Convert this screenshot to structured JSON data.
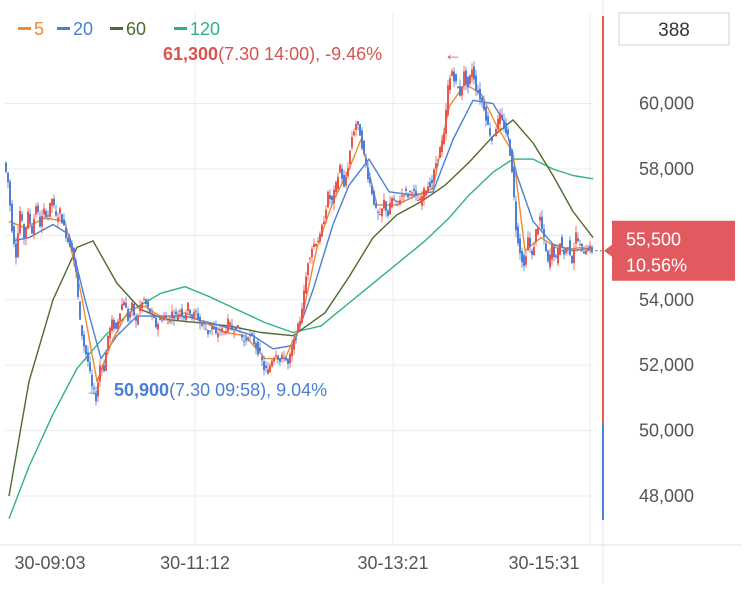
{
  "chart_data": {
    "type": "candlestick",
    "legend": [
      {
        "label": "5",
        "color": "#f08a2c"
      },
      {
        "label": "20",
        "color": "#4a7fd6"
      },
      {
        "label": "60",
        "color": "#4d6b2e"
      },
      {
        "label": "120",
        "color": "#2fb37a"
      }
    ],
    "volume_box": "388",
    "y_ticks": [
      {
        "value": 60000,
        "label": "60,000"
      },
      {
        "value": 58000,
        "label": "58,000"
      },
      {
        "value": 54000,
        "label": "54,000"
      },
      {
        "value": 52000,
        "label": "52,000"
      },
      {
        "value": 50000,
        "label": "50,000"
      },
      {
        "value": 48000,
        "label": "48,000"
      }
    ],
    "ylim": [
      46500,
      62800
    ],
    "x_ticks": [
      "30-09:03",
      "30-11:12",
      "30-13:21",
      "30-15:31"
    ],
    "current_price": {
      "value": 55500,
      "label": "55,500",
      "change": "10.56%",
      "color": "#e05a5f"
    },
    "high_annotation": {
      "value": 61300,
      "price": "61,300",
      "detail": "(7.30 14:00), -9.46%",
      "arrow": "←",
      "color": "#d9534f"
    },
    "low_annotation": {
      "value": 50900,
      "price": "50,900",
      "detail": "(7.30 09:58), 9.04%",
      "arrow": "→",
      "color": "#4a7fd6"
    },
    "up_color": "#e8574f",
    "down_color": "#4f7fd9",
    "price_path": [
      [
        0,
        58200
      ],
      [
        4,
        57600
      ],
      [
        8,
        56200
      ],
      [
        12,
        55400
      ],
      [
        16,
        56700
      ],
      [
        20,
        55900
      ],
      [
        24,
        56600
      ],
      [
        28,
        56100
      ],
      [
        32,
        56900
      ],
      [
        36,
        56300
      ],
      [
        40,
        56700
      ],
      [
        44,
        56600
      ],
      [
        48,
        57100
      ],
      [
        52,
        56500
      ],
      [
        56,
        56700
      ],
      [
        60,
        56200
      ],
      [
        64,
        55800
      ],
      [
        68,
        55600
      ],
      [
        72,
        54800
      ],
      [
        76,
        53300
      ],
      [
        80,
        52600
      ],
      [
        84,
        52100
      ],
      [
        88,
        51300
      ],
      [
        92,
        51000
      ],
      [
        96,
        52000
      ],
      [
        100,
        51900
      ],
      [
        104,
        52900
      ],
      [
        108,
        53300
      ],
      [
        112,
        53100
      ],
      [
        116,
        53700
      ],
      [
        120,
        54000
      ],
      [
        124,
        53400
      ],
      [
        128,
        53800
      ],
      [
        132,
        53300
      ],
      [
        136,
        53800
      ],
      [
        140,
        54000
      ],
      [
        144,
        53700
      ],
      [
        148,
        53500
      ],
      [
        152,
        53200
      ],
      [
        156,
        53400
      ],
      [
        160,
        53500
      ],
      [
        164,
        53300
      ],
      [
        168,
        53600
      ],
      [
        172,
        53500
      ],
      [
        176,
        53700
      ],
      [
        180,
        53500
      ],
      [
        184,
        53800
      ],
      [
        188,
        53500
      ],
      [
        192,
        53600
      ],
      [
        196,
        53300
      ],
      [
        200,
        53200
      ],
      [
        204,
        53000
      ],
      [
        208,
        53200
      ],
      [
        212,
        52900
      ],
      [
        216,
        53100
      ],
      [
        220,
        53000
      ],
      [
        224,
        53300
      ],
      [
        228,
        53100
      ],
      [
        232,
        53200
      ],
      [
        236,
        53000
      ],
      [
        240,
        52700
      ],
      [
        244,
        52900
      ],
      [
        248,
        52800
      ],
      [
        252,
        52600
      ],
      [
        256,
        52300
      ],
      [
        260,
        51900
      ],
      [
        264,
        51800
      ],
      [
        268,
        52200
      ],
      [
        272,
        52400
      ],
      [
        276,
        52100
      ],
      [
        280,
        52300
      ],
      [
        284,
        52000
      ],
      [
        288,
        52500
      ],
      [
        292,
        52900
      ],
      [
        296,
        53400
      ],
      [
        300,
        54200
      ],
      [
        304,
        55200
      ],
      [
        308,
        55600
      ],
      [
        312,
        55800
      ],
      [
        316,
        55900
      ],
      [
        320,
        56500
      ],
      [
        324,
        57200
      ],
      [
        328,
        57000
      ],
      [
        332,
        57500
      ],
      [
        336,
        58100
      ],
      [
        340,
        57400
      ],
      [
        344,
        58100
      ],
      [
        348,
        59000
      ],
      [
        352,
        59400
      ],
      [
        356,
        59100
      ],
      [
        360,
        58400
      ],
      [
        364,
        57800
      ],
      [
        368,
        57300
      ],
      [
        372,
        56700
      ],
      [
        376,
        56500
      ],
      [
        380,
        57000
      ],
      [
        384,
        56600
      ],
      [
        388,
        57100
      ],
      [
        392,
        56900
      ],
      [
        396,
        57100
      ],
      [
        400,
        57300
      ],
      [
        404,
        57200
      ],
      [
        408,
        57400
      ],
      [
        412,
        57100
      ],
      [
        416,
        57000
      ],
      [
        420,
        57300
      ],
      [
        424,
        57500
      ],
      [
        428,
        57600
      ],
      [
        432,
        58200
      ],
      [
        436,
        58600
      ],
      [
        440,
        59000
      ],
      [
        444,
        60500
      ],
      [
        448,
        61000
      ],
      [
        452,
        60600
      ],
      [
        456,
        60300
      ],
      [
        460,
        60900
      ],
      [
        464,
        60500
      ],
      [
        468,
        61100
      ],
      [
        472,
        60500
      ],
      [
        476,
        60200
      ],
      [
        480,
        59900
      ],
      [
        484,
        59300
      ],
      [
        488,
        58900
      ],
      [
        492,
        59300
      ],
      [
        496,
        59600
      ],
      [
        500,
        59300
      ],
      [
        504,
        59000
      ],
      [
        508,
        58000
      ],
      [
        512,
        56200
      ],
      [
        516,
        55500
      ],
      [
        520,
        55000
      ],
      [
        524,
        55900
      ],
      [
        528,
        55300
      ],
      [
        532,
        56100
      ],
      [
        536,
        56500
      ],
      [
        540,
        55800
      ],
      [
        544,
        55100
      ],
      [
        548,
        55600
      ],
      [
        552,
        55200
      ],
      [
        556,
        55800
      ],
      [
        560,
        55400
      ],
      [
        564,
        55700
      ],
      [
        568,
        55200
      ],
      [
        572,
        56000
      ],
      [
        576,
        55600
      ],
      [
        580,
        55500
      ],
      [
        584,
        55600
      ],
      [
        588,
        55500
      ]
    ],
    "ma5": [
      [
        4,
        56400
      ],
      [
        20,
        56200
      ],
      [
        40,
        56500
      ],
      [
        60,
        56400
      ],
      [
        76,
        54200
      ],
      [
        92,
        51500
      ],
      [
        108,
        52800
      ],
      [
        124,
        53700
      ],
      [
        140,
        53800
      ],
      [
        160,
        53400
      ],
      [
        180,
        53600
      ],
      [
        200,
        53300
      ],
      [
        220,
        53000
      ],
      [
        240,
        52900
      ],
      [
        260,
        52200
      ],
      [
        280,
        52200
      ],
      [
        296,
        53300
      ],
      [
        312,
        55600
      ],
      [
        328,
        57000
      ],
      [
        344,
        58000
      ],
      [
        356,
        58900
      ],
      [
        372,
        56900
      ],
      [
        392,
        56900
      ],
      [
        412,
        57200
      ],
      [
        428,
        57400
      ],
      [
        444,
        59900
      ],
      [
        460,
        60600
      ],
      [
        476,
        60300
      ],
      [
        492,
        59300
      ],
      [
        508,
        58500
      ],
      [
        520,
        55500
      ],
      [
        536,
        55900
      ],
      [
        556,
        55500
      ],
      [
        576,
        55600
      ],
      [
        588,
        55500
      ]
    ],
    "ma20": [
      [
        8,
        55800
      ],
      [
        24,
        55900
      ],
      [
        48,
        56300
      ],
      [
        64,
        56000
      ],
      [
        80,
        54000
      ],
      [
        96,
        52200
      ],
      [
        112,
        52900
      ],
      [
        132,
        53500
      ],
      [
        156,
        53500
      ],
      [
        180,
        53500
      ],
      [
        204,
        53300
      ],
      [
        228,
        53100
      ],
      [
        248,
        52900
      ],
      [
        268,
        52500
      ],
      [
        288,
        52600
      ],
      [
        308,
        54300
      ],
      [
        328,
        56300
      ],
      [
        344,
        57500
      ],
      [
        364,
        58300
      ],
      [
        384,
        57300
      ],
      [
        408,
        57200
      ],
      [
        428,
        57300
      ],
      [
        448,
        58900
      ],
      [
        468,
        60100
      ],
      [
        488,
        60000
      ],
      [
        500,
        59400
      ],
      [
        512,
        57800
      ],
      [
        528,
        56400
      ],
      [
        548,
        55700
      ],
      [
        568,
        55500
      ],
      [
        588,
        55600
      ]
    ],
    "ma60": [
      [
        4,
        48000
      ],
      [
        24,
        51500
      ],
      [
        48,
        54000
      ],
      [
        72,
        55600
      ],
      [
        88,
        55800
      ],
      [
        112,
        54500
      ],
      [
        136,
        53700
      ],
      [
        160,
        53400
      ],
      [
        192,
        53300
      ],
      [
        224,
        53200
      ],
      [
        256,
        53000
      ],
      [
        288,
        52900
      ],
      [
        320,
        53600
      ],
      [
        344,
        54700
      ],
      [
        368,
        55900
      ],
      [
        392,
        56600
      ],
      [
        416,
        57000
      ],
      [
        440,
        57500
      ],
      [
        464,
        58200
      ],
      [
        488,
        59000
      ],
      [
        508,
        59500
      ],
      [
        528,
        58800
      ],
      [
        548,
        57800
      ],
      [
        568,
        56700
      ],
      [
        588,
        55900
      ]
    ],
    "ma120": [
      [
        4,
        47300
      ],
      [
        24,
        48900
      ],
      [
        48,
        50500
      ],
      [
        72,
        51900
      ],
      [
        100,
        52900
      ],
      [
        128,
        53700
      ],
      [
        156,
        54200
      ],
      [
        180,
        54400
      ],
      [
        204,
        54100
      ],
      [
        232,
        53700
      ],
      [
        260,
        53300
      ],
      [
        288,
        53000
      ],
      [
        316,
        53200
      ],
      [
        344,
        53900
      ],
      [
        368,
        54500
      ],
      [
        392,
        55100
      ],
      [
        420,
        55800
      ],
      [
        444,
        56500
      ],
      [
        464,
        57200
      ],
      [
        488,
        57900
      ],
      [
        508,
        58300
      ],
      [
        528,
        58300
      ],
      [
        548,
        58000
      ],
      [
        568,
        57800
      ],
      [
        588,
        57700
      ]
    ]
  }
}
